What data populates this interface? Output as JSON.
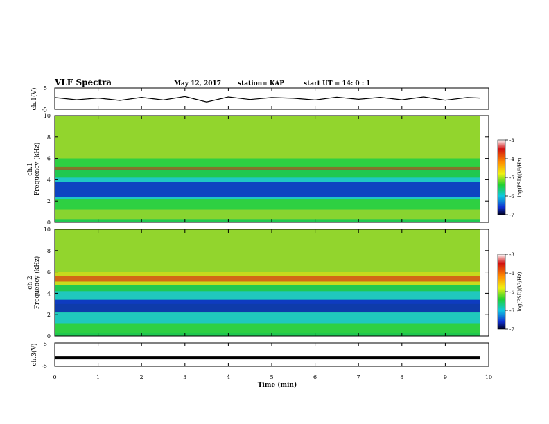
{
  "header": {
    "title": "VLF Spectra",
    "date": "May 12, 2017",
    "station": "station= KAP",
    "start": "start UT =  14: 0 : 1"
  },
  "chart_data": {
    "type": "heatmap",
    "x_range": [
      0,
      10
    ],
    "x_ticks": [
      "0",
      "1",
      "2",
      "3",
      "4",
      "5",
      "6",
      "7",
      "8",
      "9",
      "10"
    ],
    "xlabel": "Time (min)",
    "panels": [
      {
        "kind": "waveform",
        "ylabel": "ch.1(V)",
        "ylim": [
          -5,
          5
        ],
        "y_ticks": [
          "5",
          "-5"
        ],
        "x": [
          0,
          0.5,
          1,
          1.5,
          2,
          2.5,
          3,
          3.5,
          4,
          4.5,
          5,
          5.5,
          6,
          6.5,
          7,
          7.5,
          8,
          8.5,
          9,
          9.5,
          9.8
        ],
        "y": [
          0.5,
          -0.5,
          0.3,
          -0.8,
          0.6,
          -0.6,
          1.0,
          -1.5,
          0.8,
          -0.4,
          0.5,
          0.2,
          -0.6,
          0.7,
          -0.3,
          0.6,
          -0.5,
          0.8,
          -0.7,
          0.5,
          0.3
        ]
      },
      {
        "kind": "spectrogram",
        "ylabel": "ch.1\nFrequency (kHz)",
        "ylim": [
          0,
          10
        ],
        "y_ticks": [
          "0",
          "2",
          "4",
          "6",
          "8",
          "10"
        ]
      },
      {
        "kind": "spectrogram",
        "ylabel": "ch.2\nFrequency (kHz)",
        "ylim": [
          0,
          10
        ],
        "y_ticks": [
          "0",
          "2",
          "4",
          "6",
          "8",
          "10"
        ]
      },
      {
        "kind": "waveform",
        "ylabel": "ch.3(V)",
        "ylim": [
          -5,
          5
        ],
        "y_ticks": [
          "5",
          "-5"
        ],
        "x": [
          0,
          9.8
        ],
        "y": [
          -1.2,
          -1.2
        ]
      }
    ],
    "colorbar": {
      "label": "log(PSD)(V²/Hz)",
      "range": [
        -7,
        -3
      ],
      "ticks": [
        "-3",
        "-4",
        "-5",
        "-6",
        "-7"
      ]
    },
    "colors": {
      "band_high": "#d81c14",
      "band_mid_high": "#f0e010",
      "band_mid": "#30d040",
      "band_mid_low": "#20c8d8",
      "band_low": "#0a18c0"
    }
  }
}
